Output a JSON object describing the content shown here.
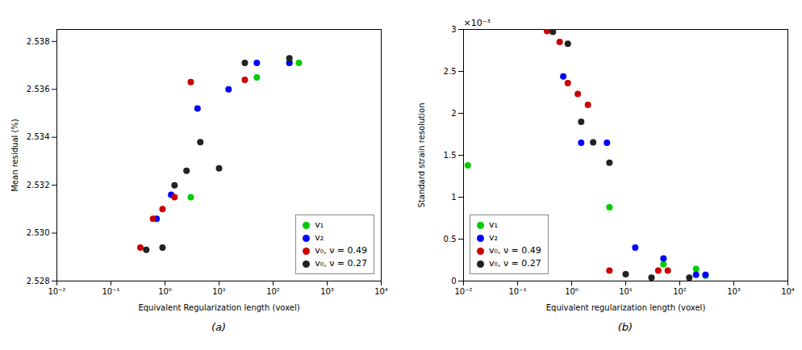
{
  "chart_data": [
    {
      "type": "scatter",
      "title": "(a)",
      "xlabel": "Equivalent Regularization length (voxel)",
      "ylabel": "Mean residual (%)",
      "log": "x",
      "grid": false,
      "legend": "lower right",
      "xlim": [
        0.01,
        10000
      ],
      "xticks": [
        {
          "value": 0.01,
          "label": "10⁻²"
        },
        {
          "value": 0.1,
          "label": "10⁻¹"
        },
        {
          "value": 1,
          "label": "10⁰"
        },
        {
          "value": 10,
          "label": "10¹"
        },
        {
          "value": 100,
          "label": "10²"
        },
        {
          "value": 1000,
          "label": "10³"
        },
        {
          "value": 10000,
          "label": "10⁴"
        }
      ],
      "ylim": [
        2.528,
        2.5385
      ],
      "yticks": [
        2.528,
        {
          "value": 2.53,
          "label": "2.530"
        },
        2.532,
        2.534,
        2.536,
        2.538
      ],
      "series": [
        {
          "name": "v₁",
          "color": "#00cc00",
          "x": [
            3.0,
            50.0,
            200.0,
            300.0
          ],
          "values": [
            2.5315,
            2.5365,
            2.5371,
            2.5371
          ]
        },
        {
          "name": "v₂",
          "color": "#0000ff",
          "x": [
            0.7,
            1.3,
            4.0,
            15.0,
            50.0,
            200.0
          ],
          "values": [
            2.5306,
            2.5316,
            2.5352,
            2.536,
            2.5371,
            2.5371
          ]
        },
        {
          "name": "v₀, ν = 0.49",
          "color": "#cc0000",
          "x": [
            0.35,
            0.6,
            0.9,
            1.5,
            3.0,
            30.0
          ],
          "values": [
            2.5294,
            2.5306,
            2.531,
            2.5315,
            2.5363,
            2.5364
          ]
        },
        {
          "name": "v₀, ν = 0.27",
          "color": "#222222",
          "x": [
            0.45,
            0.9,
            1.5,
            2.5,
            4.5,
            10.0,
            30.0,
            200.0
          ],
          "values": [
            2.5293,
            2.5294,
            2.532,
            2.5326,
            2.5338,
            2.5327,
            2.5371,
            2.5373
          ]
        }
      ]
    },
    {
      "type": "scatter",
      "title": "(b)",
      "xlabel": "Equivalent regularization length (voxel)",
      "ylabel": "Standard strain resolution",
      "annotations": [
        "×10⁻³"
      ],
      "log": "x",
      "grid": false,
      "legend": "lower left",
      "xlim": [
        0.01,
        10000
      ],
      "xticks": [
        {
          "value": 0.01,
          "label": "10⁻²"
        },
        {
          "value": 0.1,
          "label": "10⁻¹"
        },
        {
          "value": 1,
          "label": "10⁰"
        },
        {
          "value": 10,
          "label": "10¹"
        },
        {
          "value": 100,
          "label": "10²"
        },
        {
          "value": 1000,
          "label": "10³"
        },
        {
          "value": 10000,
          "label": "10⁴"
        }
      ],
      "ylim": [
        0.0,
        0.003
      ],
      "yticks": [
        0,
        {
          "value": 0.0005,
          "label": "0.5"
        },
        {
          "value": 0.001,
          "label": "1"
        },
        {
          "value": 0.0015,
          "label": "1.5"
        },
        {
          "value": 0.002,
          "label": "2"
        },
        {
          "value": 0.0025,
          "label": "2.5"
        },
        {
          "value": 0.003,
          "label": "3"
        }
      ],
      "series": [
        {
          "name": "v₁",
          "color": "#00cc00",
          "x": [
            0.012,
            5.0,
            50.0,
            200.0,
            300.0
          ],
          "values": [
            0.00138,
            0.00088,
            0.0002,
            0.000145,
            6.5e-05
          ]
        },
        {
          "name": "v₂",
          "color": "#0000ff",
          "x": [
            0.7,
            1.5,
            4.5,
            15.0,
            50.0,
            200.0,
            300.0
          ],
          "values": [
            0.00244,
            0.00165,
            0.00165,
            0.0004,
            0.00027,
            7.5e-05,
            7.5e-05
          ]
        },
        {
          "name": "v₀, ν = 0.49",
          "color": "#cc0000",
          "x": [
            0.35,
            0.6,
            0.85,
            1.3,
            2.0,
            5.0,
            40.0,
            60.0
          ],
          "values": [
            0.00298,
            0.00285,
            0.00236,
            0.00223,
            0.0021,
            0.000125,
            0.000125,
            0.000125
          ]
        },
        {
          "name": "v₀, ν = 0.27",
          "color": "#222222",
          "x": [
            0.45,
            0.85,
            1.5,
            2.5,
            5.0,
            10.0,
            30.0,
            150.0
          ],
          "values": [
            0.00297,
            0.00283,
            0.0019,
            0.001655,
            0.00141,
            8.2e-05,
            4.2e-05,
            4.2e-05
          ]
        }
      ]
    }
  ]
}
